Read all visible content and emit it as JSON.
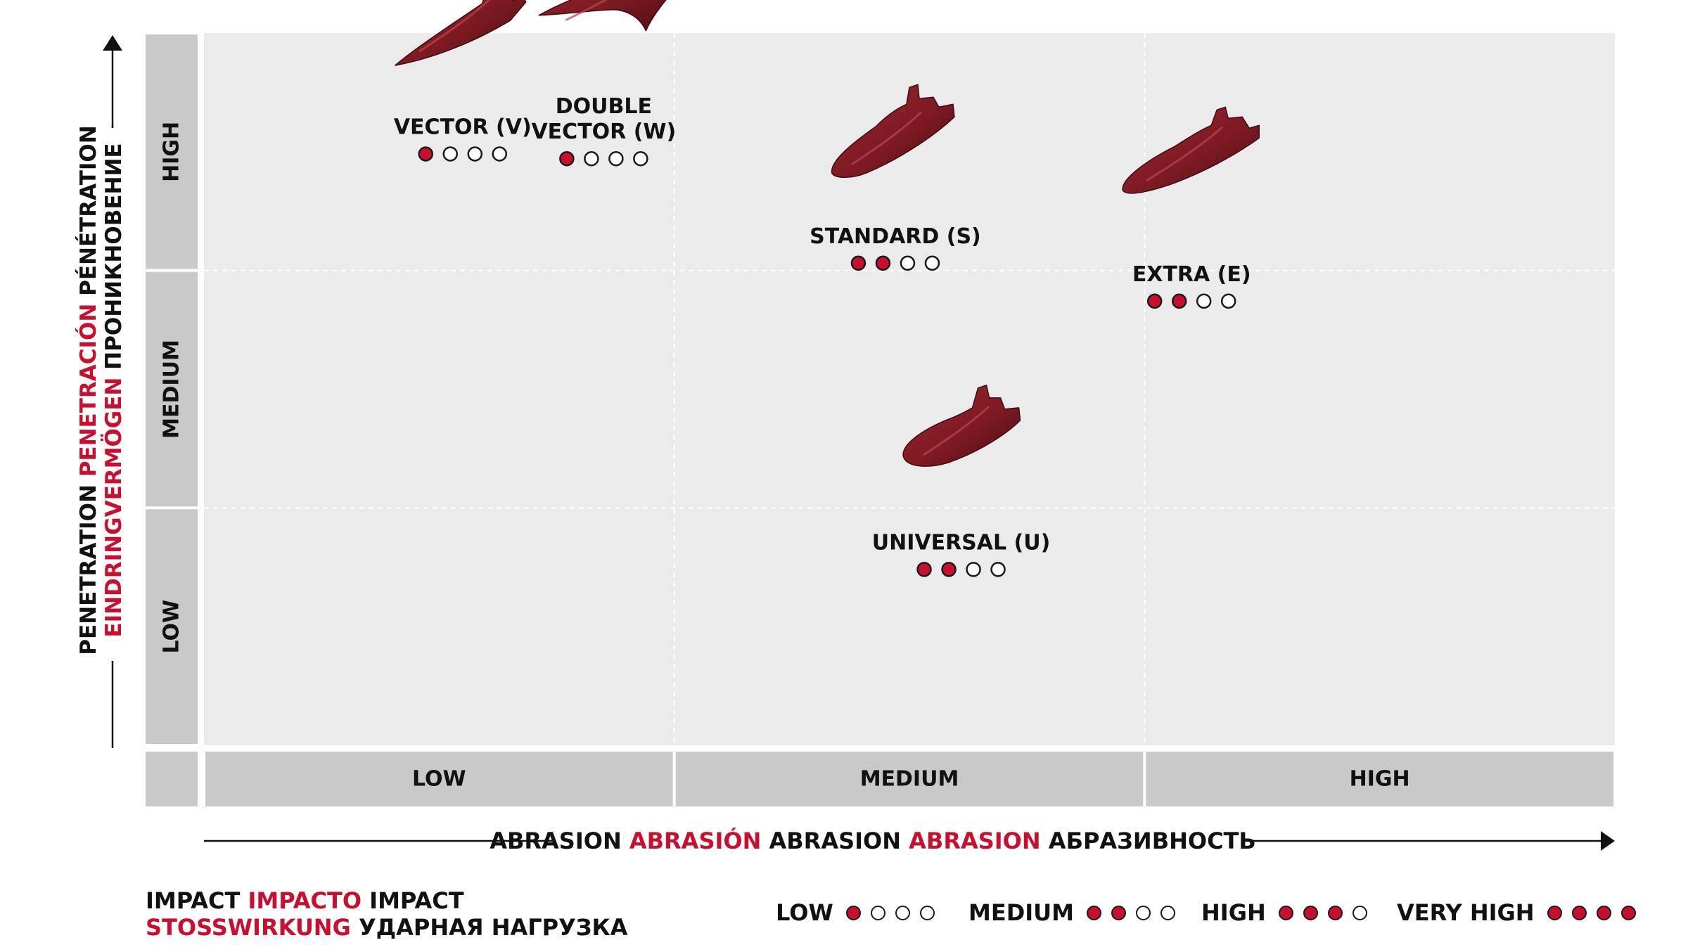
{
  "colors": {
    "accent": "#c8102e",
    "tooth": "#7e1a22",
    "plot_background": "#ebebeb",
    "band_background": "#c9c9c9"
  },
  "chart_data": {
    "type": "scatter",
    "title": "",
    "x_axis": {
      "label_parts": [
        {
          "text": "ABRASION",
          "color": "black"
        },
        {
          "text": "ABRASIÓN",
          "color": "red"
        },
        {
          "text": "ABRASION",
          "color": "black"
        },
        {
          "text": "ABRASION",
          "color": "red"
        },
        {
          "text": "АБРАЗИВНОСТЬ",
          "color": "black"
        }
      ],
      "categories": [
        "LOW",
        "MEDIUM",
        "HIGH"
      ],
      "range": [
        0,
        3
      ]
    },
    "y_axis": {
      "label_line1": [
        {
          "text": "PENETRATION",
          "color": "black"
        },
        {
          "text": "PENETRACIÓN",
          "color": "red"
        },
        {
          "text": "PÉNÉTRATION",
          "color": "black"
        }
      ],
      "label_line2": [
        {
          "text": "EINDRINGVERMÖGEN",
          "color": "red"
        },
        {
          "text": "ПРОНИКНОВЕНИЕ",
          "color": "black"
        }
      ],
      "categories": [
        "LOW",
        "MEDIUM",
        "HIGH"
      ],
      "range": [
        0,
        3
      ]
    },
    "impact_scale_max": 4,
    "points": [
      {
        "name": "VECTOR (V)",
        "label_lines": [
          "VECTOR (V)"
        ],
        "abrasion": 0.55,
        "penetration": 2.55,
        "impact": 1,
        "shape": "vector"
      },
      {
        "name": "DOUBLE VECTOR (W)",
        "label_lines": [
          "DOUBLE",
          "VECTOR (W)"
        ],
        "abrasion": 0.85,
        "penetration": 2.53,
        "impact": 1,
        "shape": "double"
      },
      {
        "name": "STANDARD (S)",
        "label_lines": [
          "STANDARD (S)"
        ],
        "abrasion": 1.47,
        "penetration": 2.09,
        "impact": 2,
        "shape": "standard"
      },
      {
        "name": "EXTRA (E)",
        "label_lines": [
          "EXTRA (E)"
        ],
        "abrasion": 2.1,
        "penetration": 1.93,
        "impact": 2,
        "shape": "extra"
      },
      {
        "name": "UNIVERSAL (U)",
        "label_lines": [
          "UNIVERSAL (U)"
        ],
        "abrasion": 1.61,
        "penetration": 0.8,
        "impact": 2,
        "shape": "universal"
      }
    ]
  },
  "impact": {
    "line1_black_a": "IMPACT",
    "line1_red": "IMPACTO",
    "line1_black_b": "IMPACT",
    "line2_red": "STOSSWIRKUNG",
    "line2_black": "УДАРНАЯ НАГРУЗКА"
  },
  "legend": [
    {
      "label": "LOW",
      "filled": 1
    },
    {
      "label": "MEDIUM",
      "filled": 2
    },
    {
      "label": "HIGH",
      "filled": 3
    },
    {
      "label": "VERY HIGH",
      "filled": 4
    }
  ]
}
